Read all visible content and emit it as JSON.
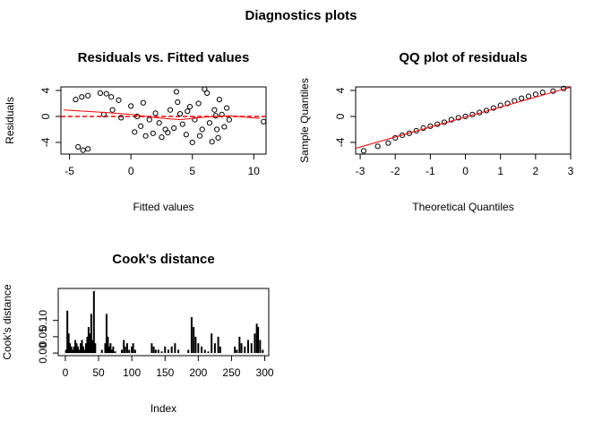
{
  "title": "Diagnostics plots",
  "chart_data": [
    {
      "type": "scatter",
      "title": "Residuals vs. Fitted values",
      "x_label": "Fitted values",
      "y_label": "Residuals",
      "xlim": [
        -5.7,
        11.0
      ],
      "ylim": [
        -5.8,
        4.55
      ],
      "xticks": [
        -5,
        0,
        5,
        10
      ],
      "yticks": [
        -4,
        0,
        4
      ],
      "point_color": "#000000",
      "points": {
        "x": [
          -4.5,
          -4,
          -3.5,
          -4.3,
          -3.9,
          -3.5,
          -2.5,
          -2,
          -1.6,
          -1,
          -2.2,
          -1.5,
          -0.8,
          0,
          0.5,
          0.8,
          1,
          1.5,
          1.8,
          2,
          2.3,
          2.5,
          3,
          3.2,
          3.5,
          3.8,
          4,
          4.2,
          4.5,
          4.8,
          5,
          5.2,
          5.5,
          5.8,
          6,
          6.2,
          6.4,
          6.6,
          6.8,
          7,
          7.2,
          7.4,
          7.6,
          7.8,
          8,
          10.8,
          2.8,
          1.2,
          0.3,
          3.7,
          5.6,
          7.1,
          6.9,
          4.6
        ],
        "y": [
          2.6,
          3,
          3.2,
          -4.7,
          -5.2,
          -5,
          3.6,
          3.5,
          3,
          2.5,
          0.3,
          1,
          -0.2,
          1.6,
          0,
          -1.5,
          2.1,
          -0.5,
          -2.6,
          0.5,
          -1,
          -3.2,
          -2.5,
          1,
          -1.8,
          2.2,
          0.4,
          -1.2,
          -2.8,
          1.5,
          -4,
          -0.5,
          2,
          -2,
          4.2,
          3.6,
          -1,
          -3.9,
          1,
          -2,
          2.6,
          0.3,
          -1.6,
          1.3,
          -0.5,
          -0.8,
          -2,
          -3,
          -2.4,
          3.8,
          -3,
          -3.3,
          0.1,
          0.8
        ]
      },
      "lines": [
        {
          "color": "#ff0000",
          "x": [
            -5.5,
            -2,
            0,
            2,
            4,
            6,
            8,
            10.5
          ],
          "y": [
            1,
            0.6,
            0.3,
            -0.2,
            -0.5,
            -0.1,
            0.1,
            -0.3
          ]
        }
      ],
      "hline": {
        "y": 0,
        "color": "#ff0000",
        "dash": true
      }
    },
    {
      "type": "scatter",
      "title": "QQ plot of residuals",
      "x_label": "Theoretical Quantiles",
      "y_label": "Sample Quantiles",
      "xlim": [
        -3.13,
        3.0
      ],
      "ylim": [
        -5.8,
        4.55
      ],
      "xticks": [
        -3,
        -2,
        -1,
        0,
        1,
        2,
        3
      ],
      "yticks": [
        -4,
        0,
        4
      ],
      "point_color": "#000000",
      "points": {
        "x": [
          -2.9,
          -2.5,
          -2.2,
          -2.0,
          -1.8,
          -1.6,
          -1.4,
          -1.2,
          -1.0,
          -0.8,
          -0.6,
          -0.4,
          -0.2,
          0,
          0.2,
          0.4,
          0.6,
          0.8,
          1.0,
          1.2,
          1.4,
          1.6,
          1.8,
          2.0,
          2.2,
          2.5,
          2.8
        ],
        "y": [
          -5.3,
          -4.6,
          -4.1,
          -3.3,
          -2.9,
          -2.6,
          -2.2,
          -1.8,
          -1.5,
          -1.2,
          -0.9,
          -0.5,
          -0.2,
          0.0,
          0.3,
          0.6,
          0.9,
          1.3,
          1.7,
          2.0,
          2.4,
          2.8,
          3.1,
          3.4,
          3.7,
          3.9,
          4.3
        ]
      },
      "lines": [
        {
          "color": "#ff0000",
          "x": [
            -3.13,
            3.0
          ],
          "y": [
            -4.9,
            4.5
          ]
        }
      ]
    },
    {
      "type": "spike",
      "title": "Cook's distance",
      "x_label": "Index",
      "y_label": "Cook's distance",
      "xlim": [
        -10.7,
        306
      ],
      "ylim": [
        -0.008,
        0.198
      ],
      "xticks": [
        0,
        50,
        100,
        150,
        200,
        250,
        300
      ],
      "yticks": [
        {
          "value": 0,
          "label": "0.00"
        },
        0.05,
        {
          "value": 0.1,
          "label": "0.10"
        }
      ],
      "color": "#000000",
      "x": [
        1,
        3,
        5,
        7,
        9,
        11,
        13,
        15,
        17,
        19,
        21,
        23,
        25,
        27,
        29,
        31,
        33,
        35,
        37,
        39,
        41,
        43,
        45,
        50,
        55,
        60,
        62,
        64,
        66,
        68,
        70,
        72,
        75,
        80,
        85,
        88,
        90,
        93,
        96,
        100,
        102,
        105,
        115,
        125,
        130,
        133,
        136,
        140,
        145,
        150,
        155,
        160,
        165,
        170,
        180,
        185,
        190,
        193,
        196,
        200,
        205,
        210,
        215,
        220,
        225,
        230,
        233,
        240,
        250,
        255,
        258,
        262,
        265,
        270,
        275,
        280,
        285,
        288,
        290,
        293,
        297
      ],
      "values": [
        0.01,
        0.13,
        0.06,
        0.03,
        0.02,
        0.01,
        0.02,
        0.04,
        0.03,
        0.02,
        0.01,
        0.03,
        0.04,
        0.02,
        0.01,
        0.03,
        0.05,
        0.08,
        0.06,
        0.12,
        0.04,
        0.19,
        0.03,
        0,
        0.01,
        0.03,
        0.12,
        0.05,
        0.02,
        0.03,
        0.01,
        0.02,
        0.005,
        0,
        0.01,
        0.04,
        0.02,
        0.03,
        0.01,
        0.02,
        0.03,
        0.01,
        0,
        0,
        0.03,
        0.02,
        0.01,
        0.01,
        0.005,
        0.02,
        0.01,
        0.02,
        0.03,
        0.01,
        0,
        0.01,
        0.11,
        0.08,
        0.05,
        0.03,
        0.02,
        0.01,
        0.005,
        0.06,
        0.03,
        0.05,
        0.02,
        0,
        0,
        0.02,
        0.01,
        0.05,
        0.03,
        0.02,
        0.04,
        0.03,
        0.06,
        0.09,
        0.08,
        0.04,
        0.01
      ]
    }
  ]
}
